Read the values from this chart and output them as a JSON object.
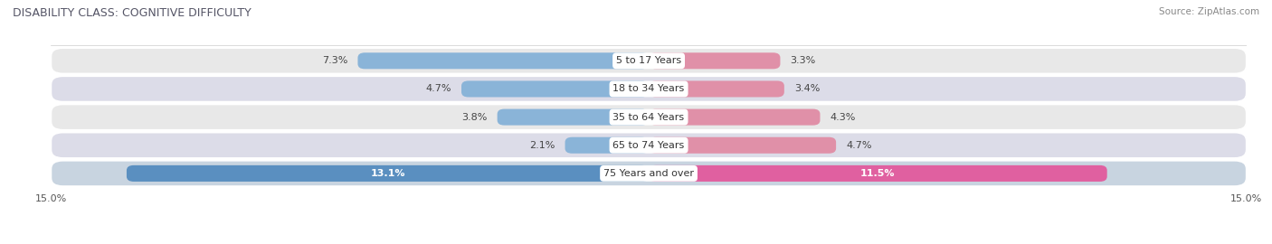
{
  "title": "DISABILITY CLASS: COGNITIVE DIFFICULTY",
  "source": "Source: ZipAtlas.com",
  "categories": [
    "5 to 17 Years",
    "18 to 34 Years",
    "35 to 64 Years",
    "65 to 74 Years",
    "75 Years and over"
  ],
  "male_values": [
    7.3,
    4.7,
    3.8,
    2.1,
    13.1
  ],
  "female_values": [
    3.3,
    3.4,
    4.3,
    4.7,
    11.5
  ],
  "x_max": 15.0,
  "male_color": "#8ab4d8",
  "female_color": "#e090a8",
  "row_bg_colors": [
    "#e8e8e8",
    "#dcdce8",
    "#e8e8e8",
    "#dcdce8",
    "#c8d4e0"
  ],
  "last_row_male_color": "#5a8fc0",
  "last_row_female_color": "#e060a0",
  "title_fontsize": 9.0,
  "bar_label_fontsize": 8.0,
  "category_fontsize": 8.0,
  "axis_label_fontsize": 8.0
}
